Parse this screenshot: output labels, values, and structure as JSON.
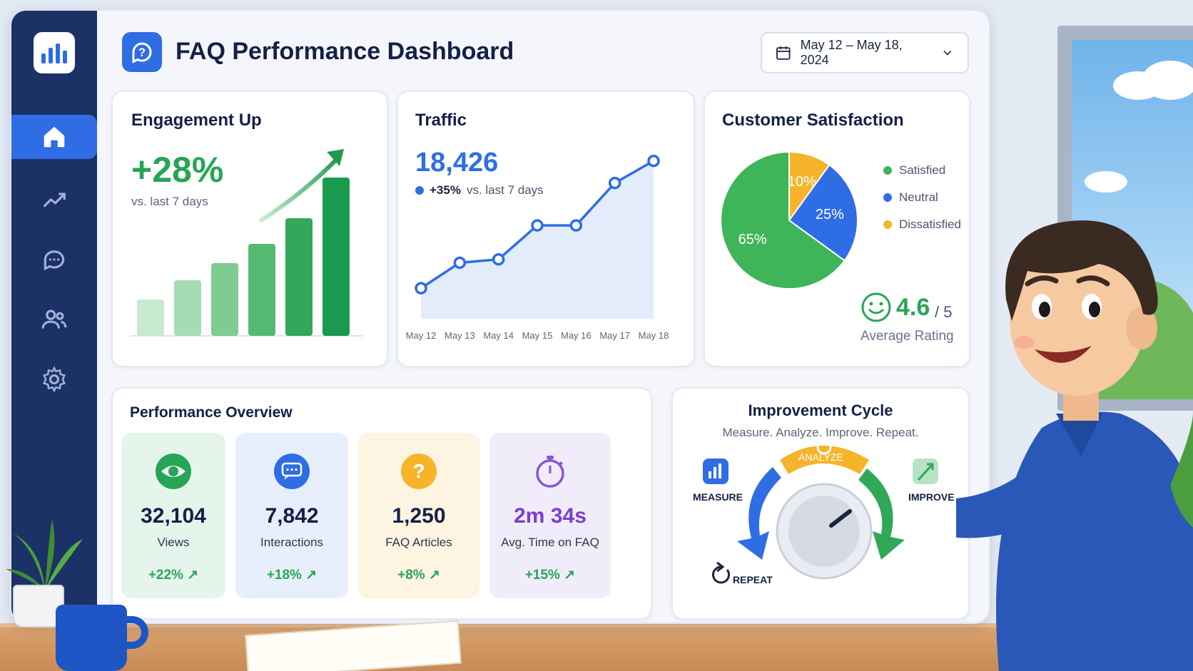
{
  "header": {
    "title": "FAQ Performance Dashboard",
    "date_range": "May 12 – May 18, 2024"
  },
  "sidebar": {
    "items": [
      {
        "name": "home",
        "icon": "home-icon",
        "active": true
      },
      {
        "name": "analytics",
        "icon": "trend-icon",
        "active": false
      },
      {
        "name": "messages",
        "icon": "chat-icon",
        "active": false
      },
      {
        "name": "users",
        "icon": "users-icon",
        "active": false
      },
      {
        "name": "settings",
        "icon": "gear-icon",
        "active": false
      }
    ]
  },
  "engagement": {
    "title": "Engagement Up",
    "value": "+28%",
    "sub": "vs. last 7 days",
    "bars": [
      0.17,
      0.26,
      0.34,
      0.43,
      0.55,
      0.74
    ]
  },
  "traffic": {
    "title": "Traffic",
    "value": "18,426",
    "change": "+35%",
    "change_sub": "vs. last 7 days",
    "chart_data": {
      "type": "line",
      "x": [
        "May 12",
        "May 13",
        "May 14",
        "May 15",
        "May 16",
        "May 17",
        "May 18"
      ],
      "values": [
        0.18,
        0.33,
        0.35,
        0.55,
        0.55,
        0.8,
        0.93
      ]
    }
  },
  "satisfaction": {
    "title": "Customer Satisfaction",
    "chart_data": {
      "type": "pie",
      "slices": [
        {
          "label": "Satisfied",
          "value": 65,
          "text": "65%",
          "color": "#3fb55a"
        },
        {
          "label": "Neutral",
          "value": 25,
          "text": "25%",
          "color": "#2f6de5"
        },
        {
          "label": "Dissatisfied",
          "value": 10,
          "text": "10%",
          "color": "#f5b42a"
        }
      ]
    },
    "rating": "4.6",
    "rating_max": "/ 5",
    "rating_label": "Average Rating"
  },
  "overview": {
    "title": "Performance Overview",
    "stats": [
      {
        "value": "32,104",
        "label": "Views",
        "change": "+22%",
        "icon": "eye-icon",
        "bg": "#e6f5ec",
        "accent": "#27a556"
      },
      {
        "value": "7,842",
        "label": "Interactions",
        "change": "+18%",
        "icon": "chat-bubble-icon",
        "bg": "#e7effc",
        "accent": "#2f6de5"
      },
      {
        "value": "1,250",
        "label": "FAQ Articles",
        "change": "+8%",
        "icon": "question-icon",
        "bg": "#fdf4e1",
        "accent": "#f5b42a"
      },
      {
        "value": "2m 34s",
        "label": "Avg. Time on FAQ",
        "change": "+15%",
        "icon": "stopwatch-icon",
        "bg": "#f1ecfa",
        "accent": "#8a55d6"
      }
    ]
  },
  "cycle": {
    "title": "Improvement Cycle",
    "subtitle": "Measure. Analyze. Improve. Repeat.",
    "measure": "MEASURE",
    "analyze": "ANALYZE",
    "improve": "IMPROVE",
    "repeat": "REPEAT"
  }
}
